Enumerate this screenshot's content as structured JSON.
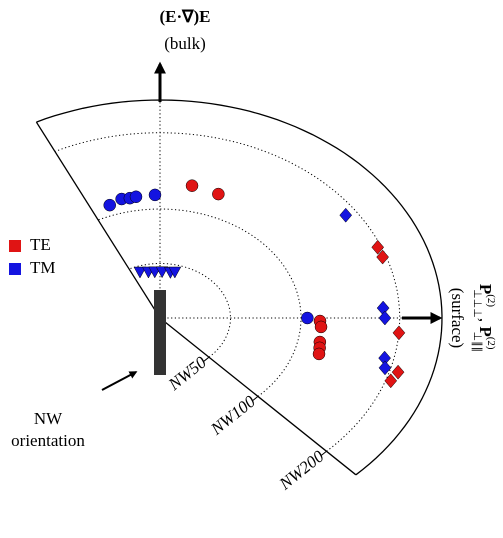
{
  "chart_data": {
    "type": "polar_scatter",
    "top_label": "(E·∇)E",
    "top_sublabel": "(bulk)",
    "right_label": [
      {
        "base": "P",
        "sup": "(2)",
        "sub": "⊥⊥⊥"
      },
      {
        "base": "P",
        "sup": "(2)",
        "sub": "⊥∥∥"
      }
    ],
    "right_sublabel": "(surface)",
    "annotation": [
      "NW",
      "orientation"
    ],
    "rlim": [
      0,
      4
    ],
    "rticks": [
      {
        "value": 1,
        "label": "NW50"
      },
      {
        "value": 2,
        "label": "NW100"
      },
      {
        "value": 3.4,
        "label": "NW200"
      }
    ],
    "thetalim": [
      -46,
      116
    ],
    "thetaticks": [
      0,
      90
    ],
    "grid": true,
    "legend": "left",
    "series": [
      {
        "name": "TE",
        "color": "#e01414",
        "r": [
          2.47,
          2.42,
          2.27,
          2.29,
          2.31,
          2.33,
          2.35,
          3.35,
          3.35,
          3.4,
          3.52,
          3.47
        ],
        "theta": [
          79.4,
          70,
          -1.4,
          -4.1,
          -11,
          -13.6,
          -16.3,
          22.8,
          19.5,
          -4.6,
          -16.4,
          -19.4
        ],
        "markers": [
          "circle",
          "circle",
          "circle",
          "circle",
          "circle",
          "circle",
          "circle",
          "diamond",
          "diamond",
          "diamond",
          "diamond",
          "diamond"
        ]
      },
      {
        "name": "TM",
        "color": "#1414e0",
        "r": [
          2.19,
          2.25,
          2.24,
          2.25,
          2.26,
          2.09,
          0.89,
          0.86,
          0.85,
          0.85,
          0.85,
          0.87,
          3.24,
          3.17,
          3.19,
          3.27,
          3.32
        ],
        "theta": [
          109,
          104,
          101,
          98.7,
          91.8,
          0,
          108.6,
          101,
          95,
          88,
          80,
          76,
          35.6,
          3.3,
          0,
          -13,
          -16
        ],
        "markers": [
          "circle",
          "circle",
          "circle",
          "circle",
          "circle",
          "circle",
          "triangle",
          "triangle",
          "triangle",
          "triangle",
          "triangle",
          "triangle",
          "diamond",
          "diamond",
          "diamond",
          "diamond",
          "diamond"
        ]
      }
    ]
  }
}
